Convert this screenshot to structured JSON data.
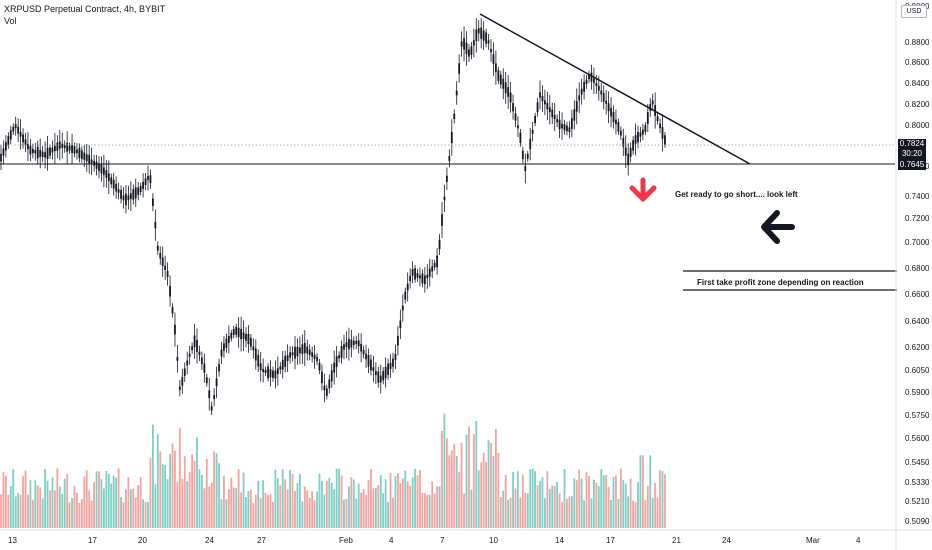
{
  "header": {
    "title": "XRPUSD Perpetual Contract, 4h, BYBIT",
    "subtitle": "Vol"
  },
  "currency_badge": "USD",
  "price_axis": {
    "labels": [
      "0.9000",
      "0.8800",
      "0.8600",
      "0.8400",
      "0.8200",
      "0.8000",
      "0.7600",
      "0.7400",
      "0.7200",
      "0.7000",
      "0.6800",
      "0.6600",
      "0.6400",
      "0.6200",
      "0.6050",
      "0.5900",
      "0.5750",
      "0.5600",
      "0.5450",
      "0.5330",
      "0.5210",
      "0.5090"
    ],
    "current_price": "0.7824",
    "countdown": "30:20",
    "support_price": "0.7645"
  },
  "time_axis": {
    "labels": [
      "13",
      "17",
      "20",
      "24",
      "27",
      "Feb",
      "4",
      "7",
      "10",
      "14",
      "17",
      "21",
      "24",
      "Mar",
      "4"
    ]
  },
  "annotations": {
    "short_note": "Get ready to go short.... look left",
    "tp_note": "First take profit zone depending on reaction"
  },
  "colors": {
    "candle": "#131722",
    "vol_up": "#7ccfc4",
    "vol_down": "#f7a1a1",
    "red_arrow": "#f23645",
    "line": "#131722",
    "grid": "#f0f3fa"
  },
  "chart_data": {
    "type": "candlestick",
    "series": [
      {
        "name": "XRPUSD",
        "points": [
          {
            "x": "13",
            "y": 0.775
          },
          {
            "x": "17",
            "y": 0.77
          },
          {
            "x": "20",
            "y": 0.745
          },
          {
            "x": "24",
            "y": 0.58
          },
          {
            "x": "27",
            "y": 0.61
          },
          {
            "x": "Feb",
            "y": 0.615
          },
          {
            "x": "4",
            "y": 0.61
          },
          {
            "x": "7",
            "y": 0.76
          },
          {
            "x": "10",
            "y": 0.87
          },
          {
            "x": "14",
            "y": 0.8
          },
          {
            "x": "17",
            "y": 0.82
          },
          {
            "x": "21",
            "y": 0.7824
          }
        ]
      }
    ],
    "support_level": 0.7645,
    "current_level": 0.7824
  }
}
